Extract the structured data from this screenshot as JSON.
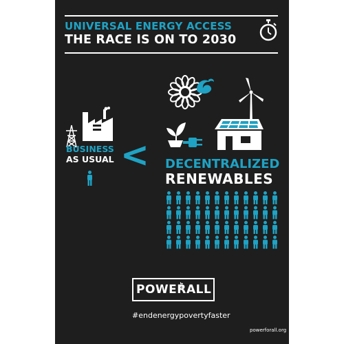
{
  "header": {
    "title_line1": "UNIVERSAL ENERGY ACCESS",
    "title_line2": "THE RACE IS ON TO 2030"
  },
  "business": {
    "line1": "BUSINESS",
    "line2": "AS USUAL"
  },
  "comparison_symbol": "<",
  "renewables": {
    "line1": "DECENTRALIZED",
    "line2": "RENEWABLES"
  },
  "brand": {
    "power": "POWER",
    "for": "for",
    "all": "ALL"
  },
  "hashtag": "#endenergypovertyfaster",
  "website": "powerforall.org",
  "people_grid": {
    "rows": 4,
    "cols": 12
  },
  "colors": {
    "background": "#1e1e1e",
    "accent": "#1fa2c3",
    "text": "#ffffff"
  },
  "icons": [
    "stopwatch-icon",
    "factory-icon",
    "power-pylon-icon",
    "person-icon",
    "solar-flower-icon",
    "hydro-wave-icon",
    "wind-turbine-icon",
    "plant-plug-icon",
    "solar-house-icon"
  ]
}
